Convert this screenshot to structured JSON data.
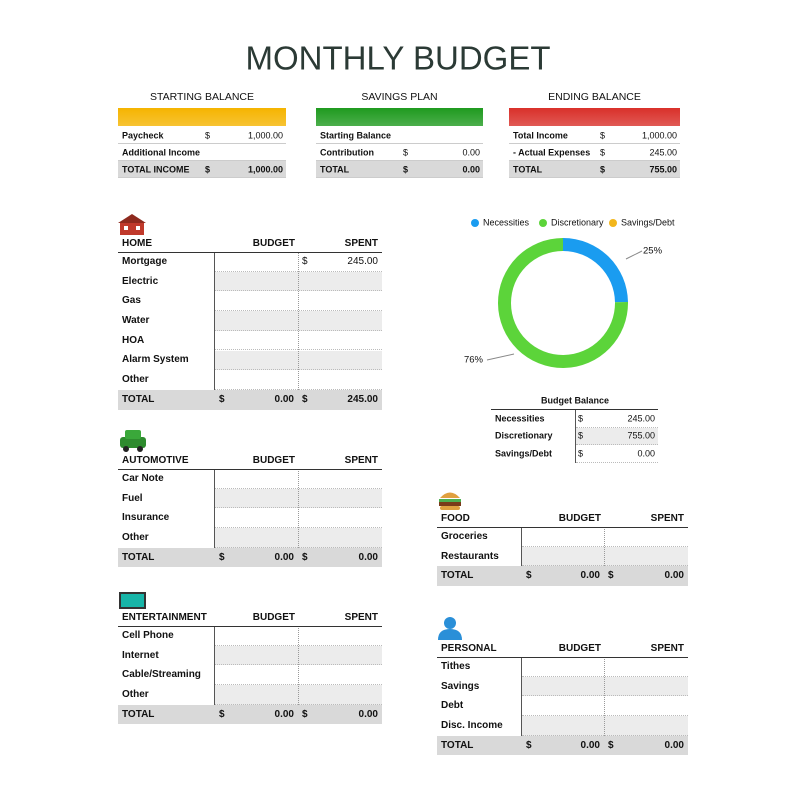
{
  "title": "MONTHLY BUDGET",
  "summary": [
    {
      "title": "STARTING BALANCE",
      "color": "#f5b400",
      "rows": [
        {
          "label": "Paycheck",
          "currency": "$",
          "amount": "1,000.00"
        },
        {
          "label": "Additional Income"
        },
        {
          "label": "TOTAL INCOME",
          "currency": "$",
          "amount": "1,000.00"
        }
      ]
    },
    {
      "title": "SAVINGS PLAN",
      "color": "#1f9a1f",
      "rows": [
        {
          "label": "Starting Balance"
        },
        {
          "label": "Contribution",
          "currency": "$",
          "amount": "0.00"
        },
        {
          "label": "TOTAL",
          "currency": "$",
          "amount": "0.00"
        }
      ]
    },
    {
      "title": "ENDING BALANCE",
      "color": "#d9302a",
      "rows": [
        {
          "label": "Total Income",
          "currency": "$",
          "amount": "1,000.00"
        },
        {
          "label": "- Actual Expenses",
          "currency": "$",
          "amount": "245.00"
        },
        {
          "label": "TOTAL",
          "currency": "$",
          "amount": "755.00"
        }
      ]
    }
  ],
  "sections": [
    {
      "title": "HOME",
      "budget": "BUDGET",
      "spent": "SPENT",
      "rows": [
        {
          "label": "Mortgage",
          "spent": {
            "currency": "$",
            "amount": "245.00"
          }
        },
        {
          "label": "Electric"
        },
        {
          "label": "Gas"
        },
        {
          "label": "Water"
        },
        {
          "label": "HOA"
        },
        {
          "label": "Alarm System"
        },
        {
          "label": "Other"
        }
      ],
      "total": {
        "label": "TOTAL",
        "budget": {
          "currency": "$",
          "amount": "0.00"
        },
        "spent": {
          "currency": "$",
          "amount": "245.00"
        }
      }
    },
    {
      "title": "AUTOMOTIVE",
      "budget": "BUDGET",
      "spent": "SPENT",
      "rows": [
        {
          "label": "Car Note"
        },
        {
          "label": "Fuel"
        },
        {
          "label": "Insurance"
        },
        {
          "label": "Other"
        }
      ],
      "total": {
        "label": "TOTAL",
        "budget": {
          "currency": "$",
          "amount": "0.00"
        },
        "spent": {
          "currency": "$",
          "amount": "0.00"
        }
      }
    },
    {
      "title": "ENTERTAINMENT",
      "budget": "BUDGET",
      "spent": "SPENT",
      "rows": [
        {
          "label": "Cell Phone"
        },
        {
          "label": "Internet"
        },
        {
          "label": "Cable/Streaming"
        },
        {
          "label": "Other"
        }
      ],
      "total": {
        "label": "TOTAL",
        "budget": {
          "currency": "$",
          "amount": "0.00"
        },
        "spent": {
          "currency": "$",
          "amount": "0.00"
        }
      }
    },
    {
      "title": "FOOD",
      "budget": "BUDGET",
      "spent": "SPENT",
      "rows": [
        {
          "label": "Groceries"
        },
        {
          "label": "Restaurants"
        }
      ],
      "total": {
        "label": "TOTAL",
        "budget": {
          "currency": "$",
          "amount": "0.00"
        },
        "spent": {
          "currency": "$",
          "amount": "0.00"
        }
      }
    },
    {
      "title": "PERSONAL",
      "budget": "BUDGET",
      "spent": "SPENT",
      "rows": [
        {
          "label": "Tithes"
        },
        {
          "label": "Savings"
        },
        {
          "label": "Debt"
        },
        {
          "label": "Disc. Income"
        }
      ],
      "total": {
        "label": "TOTAL",
        "budget": {
          "currency": "$",
          "amount": "0.00"
        },
        "spent": {
          "currency": "$",
          "amount": "0.00"
        }
      }
    }
  ],
  "chart": {
    "type": "pie",
    "donut": true,
    "categories": [
      "Necessities",
      "Discretionary",
      "Savings/Debt"
    ],
    "colors": [
      "#1a9cf0",
      "#5cd43a",
      "#f2b61c"
    ],
    "values": [
      25,
      76,
      0
    ],
    "value_labels": [
      "25%",
      "76%",
      null
    ]
  },
  "budget_balance": {
    "title": "Budget Balance",
    "rows": [
      {
        "label": "Necessities",
        "currency": "$",
        "amount": "245.00"
      },
      {
        "label": "Discretionary",
        "currency": "$",
        "amount": "755.00"
      },
      {
        "label": "Savings/Debt",
        "currency": "$",
        "amount": "0.00"
      }
    ]
  }
}
